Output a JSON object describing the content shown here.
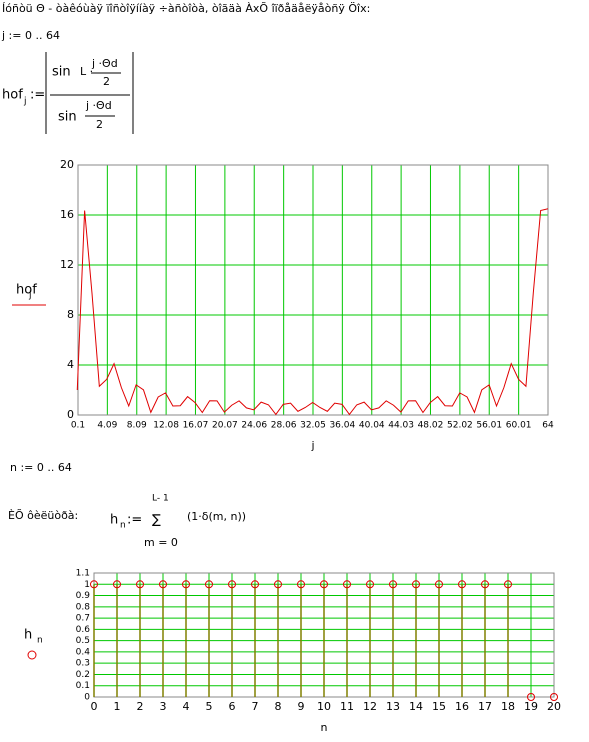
{
  "text": {
    "intro": "Íóñòü Θ - òàêóùàÿ ïîñòîÿííàÿ ÷àñòîòà, òîãäà ÀxÕ îïðåäåëÿåòñÿ Öîx:",
    "j_range": "j := 0 .. 64",
    "hof": "hof",
    "hof_sub": "j",
    "assign": ":=",
    "sin": "sin",
    "L": "L ·",
    "jd": "j ·Θd",
    "two": "2",
    "n_range": "n := 0 .. 64",
    "ih": "ÈÕ ôèëüòðà:",
    "h": "h",
    "h_sub": "n",
    "upper": "L- 1",
    "sum": "∑",
    "lower": "m = 0",
    "term": "(1·δ(m, n))"
  },
  "chart_data": [
    {
      "type": "line",
      "ylabel": "hof",
      "ylabel_sub": "j",
      "xlabel": "j",
      "x": [
        0,
        1,
        2,
        3,
        4,
        5,
        6,
        7,
        8,
        9,
        10,
        11,
        12,
        13,
        14,
        15,
        16,
        17,
        18,
        19,
        20,
        21,
        22,
        23,
        24,
        25,
        26,
        27,
        28,
        29,
        30,
        31,
        32,
        33,
        34,
        35,
        36,
        37,
        38,
        39,
        40,
        41,
        42,
        43,
        44,
        45,
        46,
        47,
        48,
        49,
        50,
        51,
        52,
        53,
        54,
        55,
        56,
        57,
        58,
        59,
        60,
        61,
        62,
        63,
        64
      ],
      "series": [
        {
          "color": "#e00000",
          "values": [
            2,
            16.36,
            9.76,
            2.3,
            2.85,
            4.11,
            2.19,
            0.72,
            2.41,
            2.01,
            0.21,
            1.44,
            1.77,
            0.72,
            0.74,
            1.47,
            1,
            0.2,
            1.14,
            1.13,
            0.23,
            0.78,
            1.13,
            0.57,
            0.41,
            1.03,
            0.81,
            0.05,
            0.85,
            0.95,
            0.29,
            0.6,
            1,
            0.6,
            0.29,
            0.95,
            0.85,
            0.05,
            0.81,
            1.03,
            0.41,
            0.57,
            1.13,
            0.78,
            0.23,
            1.13,
            1.14,
            0.2,
            1,
            1.47,
            0.74,
            0.72,
            1.77,
            1.44,
            0.21,
            2.01,
            2.41,
            0.72,
            2.19,
            4.11,
            2.85,
            2.3,
            9.76,
            16.36,
            16.5
          ]
        }
      ],
      "xlim": [
        0.1,
        64
      ],
      "xticks": [
        0.1,
        4.09,
        8.09,
        12.08,
        16.07,
        20.07,
        24.06,
        28.06,
        32.05,
        36.04,
        40.04,
        44.03,
        48.02,
        52.02,
        56.01,
        60.01,
        64
      ],
      "ylim": [
        0,
        20
      ],
      "yticks": [
        0,
        4,
        8,
        12,
        16,
        20
      ],
      "grid": true,
      "grid_color": "#00c800"
    },
    {
      "type": "stem",
      "ylabel": "h",
      "ylabel_sub": "n",
      "xlabel": "n",
      "x": [
        0,
        1,
        2,
        3,
        4,
        5,
        6,
        7,
        8,
        9,
        10,
        11,
        12,
        13,
        14,
        15,
        16,
        17,
        18,
        19,
        20
      ],
      "series": [
        {
          "color": "#e00000",
          "stem_color": "#808000",
          "values": [
            1,
            1,
            1,
            1,
            1,
            1,
            1,
            1,
            1,
            1,
            1,
            1,
            1,
            1,
            1,
            1,
            1,
            1,
            1,
            0,
            0
          ]
        }
      ],
      "xlim": [
        0,
        20
      ],
      "xticks": [
        0,
        1,
        2,
        3,
        4,
        5,
        6,
        7,
        8,
        9,
        10,
        11,
        12,
        13,
        14,
        15,
        16,
        17,
        18,
        19,
        20
      ],
      "ylim": [
        0,
        1.1
      ],
      "yticks": [
        0,
        0.1,
        0.2,
        0.3,
        0.4,
        0.5,
        0.6,
        0.7,
        0.8,
        0.9,
        1,
        1.1
      ],
      "grid": true,
      "grid_color": "#00c800"
    }
  ]
}
